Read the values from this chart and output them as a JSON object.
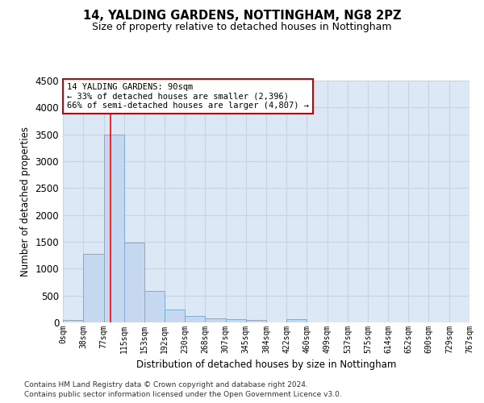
{
  "title1": "14, YALDING GARDENS, NOTTINGHAM, NG8 2PZ",
  "title2": "Size of property relative to detached houses in Nottingham",
  "xlabel": "Distribution of detached houses by size in Nottingham",
  "ylabel": "Number of detached properties",
  "bin_labels": [
    "0sqm",
    "38sqm",
    "77sqm",
    "115sqm",
    "153sqm",
    "192sqm",
    "230sqm",
    "268sqm",
    "307sqm",
    "345sqm",
    "384sqm",
    "422sqm",
    "460sqm",
    "499sqm",
    "537sqm",
    "575sqm",
    "614sqm",
    "652sqm",
    "690sqm",
    "729sqm",
    "767sqm"
  ],
  "bin_edges": [
    0,
    38,
    77,
    115,
    153,
    192,
    230,
    268,
    307,
    345,
    384,
    422,
    460,
    499,
    537,
    575,
    614,
    652,
    690,
    729,
    767
  ],
  "bar_heights": [
    40,
    1270,
    3500,
    1480,
    580,
    240,
    115,
    80,
    55,
    40,
    0,
    55,
    0,
    0,
    0,
    0,
    0,
    0,
    0,
    0
  ],
  "bar_color": "#c5d8f0",
  "bar_edge_color": "#7aadd6",
  "grid_color": "#c8d4e0",
  "background_color": "#dce8f5",
  "red_line_x": 90,
  "annotation_line1": "14 YALDING GARDENS: 90sqm",
  "annotation_line2": "← 33% of detached houses are smaller (2,396)",
  "annotation_line3": "66% of semi-detached houses are larger (4,807) →",
  "annotation_box_color": "#ffffff",
  "annotation_border_color": "#cc0000",
  "ylim": [
    0,
    4500
  ],
  "yticks": [
    0,
    500,
    1000,
    1500,
    2000,
    2500,
    3000,
    3500,
    4000,
    4500
  ],
  "footer1": "Contains HM Land Registry data © Crown copyright and database right 2024.",
  "footer2": "Contains public sector information licensed under the Open Government Licence v3.0."
}
